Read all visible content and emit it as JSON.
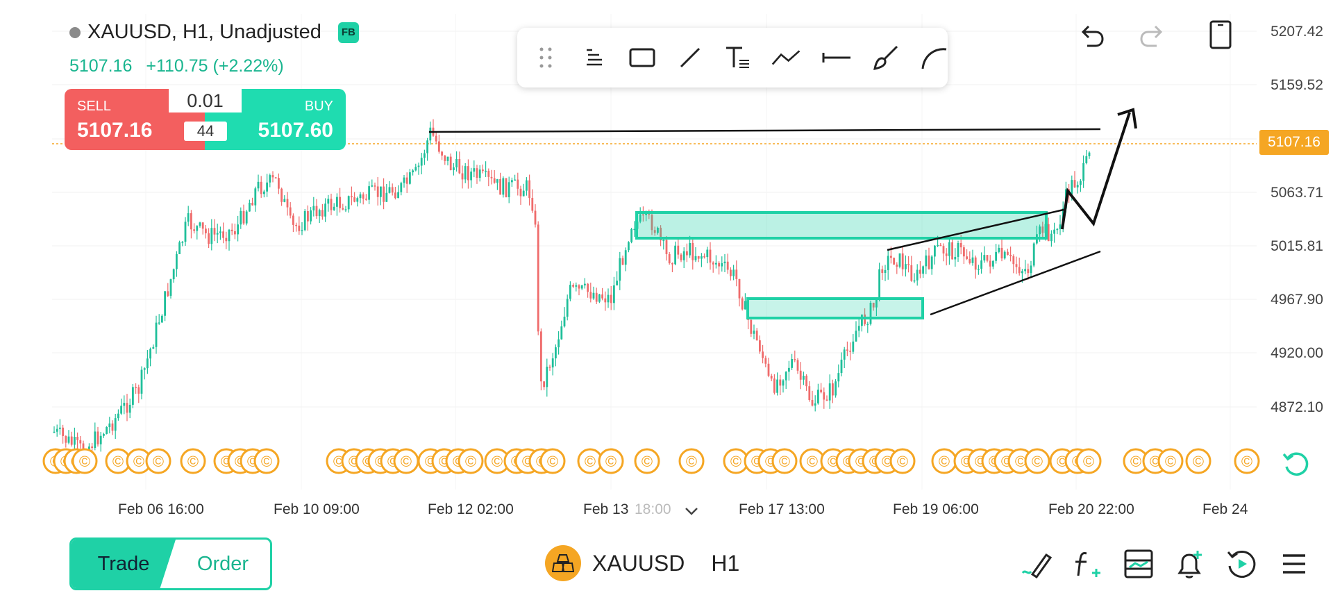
{
  "header": {
    "symbol_title": "XAUUSD, H1, Unadjusted",
    "badge": "FB",
    "last_price": "5107.16",
    "change": "+110.75 (+2.22%)"
  },
  "trade_widget": {
    "sell_label": "SELL",
    "sell_price": "5107.16",
    "buy_label": "BUY",
    "buy_price": "5107.60",
    "lot": "0.01",
    "spread": "44"
  },
  "toolbar": {
    "tools": [
      "drag-handle-icon",
      "menu-list-icon",
      "rectangle-icon",
      "line-icon",
      "text-tool-icon",
      "polyline-icon",
      "horizontal-line-icon",
      "brush-icon",
      "arc-icon"
    ]
  },
  "top_right": [
    "undo-icon",
    "redo-icon",
    "phone-layout-icon"
  ],
  "y_axis": {
    "labels": [
      "5207.42",
      "5159.52",
      "5063.71",
      "5015.81",
      "4967.90",
      "4920.00",
      "4872.10"
    ],
    "last_price_tag": "5107.16"
  },
  "x_axis": {
    "labels": [
      "Feb 06 16:00",
      "Feb 10 09:00",
      "Feb 12 02:00",
      "Feb 13",
      "18:00",
      "Feb 17 13:00",
      "Feb 19 06:00",
      "Feb 20 22:00",
      "Feb 24"
    ]
  },
  "bottom": {
    "trade_tab": "Trade",
    "order_tab": "Order",
    "symbol": "XAUUSD",
    "timeframe": "H1",
    "icons": [
      "draw-pen-icon",
      "indicator-fx-icon",
      "template-icon",
      "alert-bell-icon",
      "replay-icon",
      "menu-icon"
    ]
  },
  "colors": {
    "bull": "#1fbf9a",
    "bear": "#ef6b6b",
    "zone": "#1fd1a6",
    "event": "#f5a623",
    "sell": "#f35f5f",
    "buy": "#1fdcb0"
  }
}
